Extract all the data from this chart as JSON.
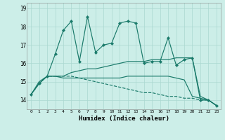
{
  "xlabel": "Humidex (Indice chaleur)",
  "background_color": "#cceee8",
  "grid_color": "#aad8d0",
  "line_color": "#1a7a6a",
  "ylim": [
    13.5,
    19.3
  ],
  "xlim": [
    -0.5,
    23.5
  ],
  "series": [
    {
      "y": [
        14.3,
        14.9,
        15.3,
        16.5,
        17.8,
        18.3,
        16.1,
        18.55,
        16.6,
        17.0,
        17.1,
        18.2,
        18.3,
        18.2,
        16.0,
        16.1,
        16.1,
        17.4,
        15.9,
        16.2,
        16.3,
        14.0,
        14.0,
        13.7
      ],
      "marker": true,
      "dashed": false
    },
    {
      "y": [
        14.3,
        14.9,
        15.3,
        15.3,
        15.2,
        15.2,
        15.2,
        15.2,
        15.2,
        15.2,
        15.2,
        15.2,
        15.3,
        15.3,
        15.3,
        15.3,
        15.3,
        15.3,
        15.2,
        15.1,
        14.2,
        14.1,
        14.0,
        13.7
      ],
      "marker": false,
      "dashed": false
    },
    {
      "y": [
        14.3,
        15.0,
        15.3,
        15.3,
        15.3,
        15.5,
        15.6,
        15.7,
        15.7,
        15.8,
        15.9,
        16.0,
        16.1,
        16.1,
        16.1,
        16.2,
        16.2,
        16.2,
        16.3,
        16.3,
        16.3,
        14.2,
        14.0,
        13.7
      ],
      "marker": false,
      "dashed": false
    },
    {
      "y": [
        14.3,
        14.9,
        15.3,
        15.3,
        15.3,
        15.3,
        15.2,
        15.1,
        15.0,
        14.9,
        14.8,
        14.7,
        14.6,
        14.5,
        14.4,
        14.4,
        14.3,
        14.2,
        14.2,
        14.1,
        14.1,
        14.0,
        14.0,
        13.7
      ],
      "marker": false,
      "dashed": true
    }
  ],
  "yticks": [
    14,
    15,
    16,
    17,
    18,
    19
  ],
  "xticks": [
    0,
    1,
    2,
    3,
    4,
    5,
    6,
    7,
    8,
    9,
    10,
    11,
    12,
    13,
    14,
    15,
    16,
    17,
    18,
    19,
    20,
    21,
    22,
    23
  ]
}
